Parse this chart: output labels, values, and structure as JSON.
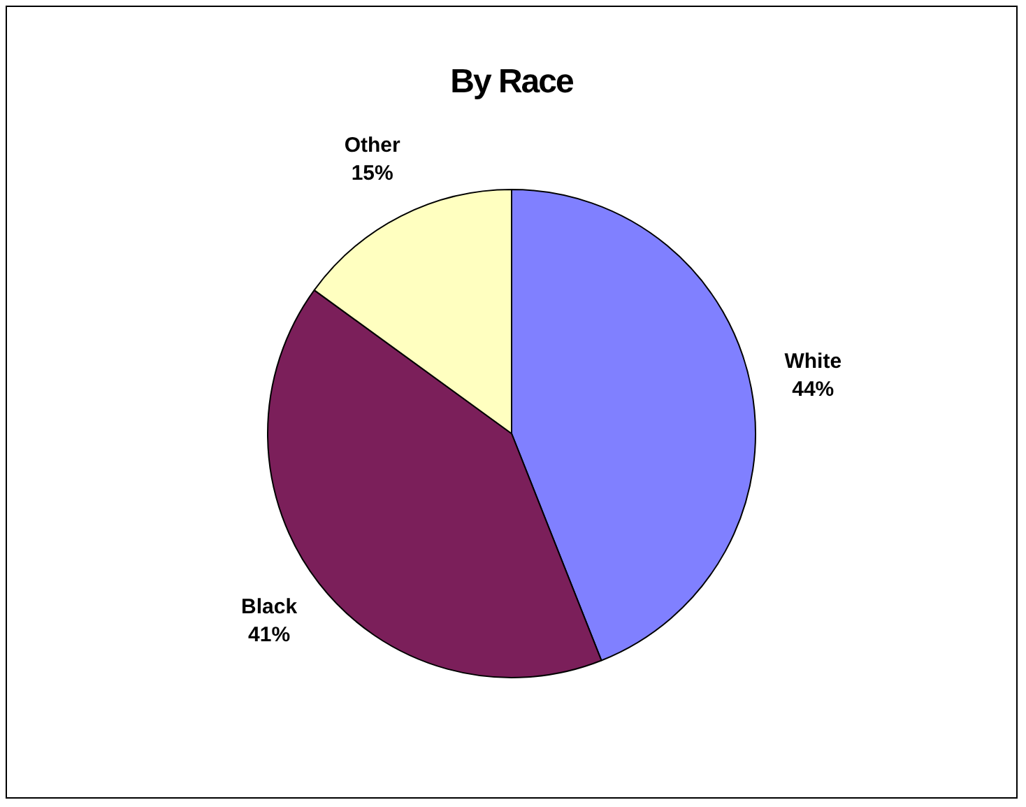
{
  "chart_data": {
    "type": "pie",
    "title": "By Race",
    "categories": [
      "White",
      "Black",
      "Other"
    ],
    "values": [
      44,
      41,
      15
    ],
    "colors": [
      "#8080ff",
      "#7b1f5a",
      "#ffffc0"
    ],
    "value_labels": [
      "44%",
      "41%",
      "15%"
    ],
    "legend": false
  }
}
